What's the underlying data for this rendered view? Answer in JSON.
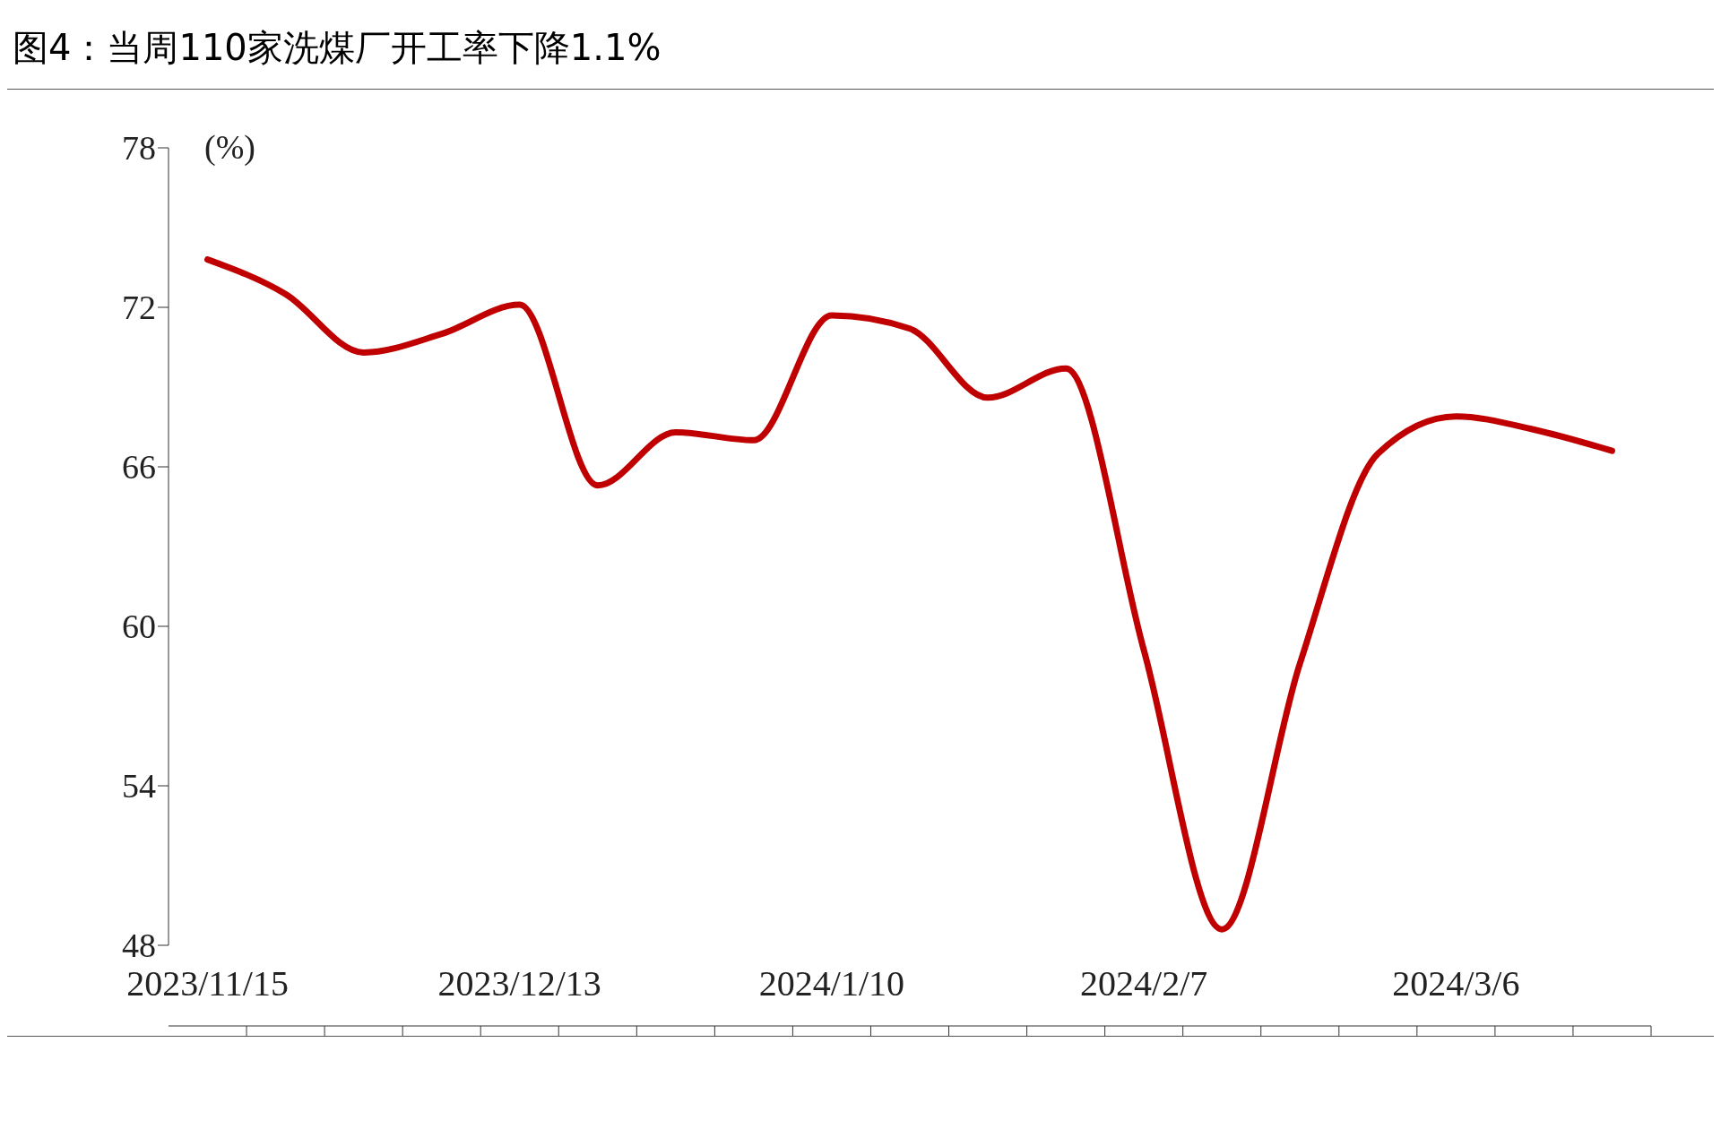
{
  "chart_data": {
    "type": "line",
    "title": "图4：当周110家洗煤厂开工率下降1.1%",
    "ylabel": "(%)",
    "categories": [
      "2023/11/15",
      null,
      null,
      null,
      "2023/12/13",
      null,
      null,
      null,
      "2024/1/10",
      null,
      null,
      null,
      "2024/2/7",
      null,
      null,
      null,
      "2024/3/6",
      null,
      null
    ],
    "series": [
      {
        "color": "#c00000",
        "values": [
          73.8,
          72.5,
          70.3,
          71.0,
          72.1,
          65.3,
          67.3,
          67.0,
          71.7,
          71.2,
          68.6,
          69.7,
          59.1,
          48.6,
          58.6,
          66.5,
          67.9,
          67.4,
          66.6
        ]
      }
    ],
    "ylim": [
      48,
      78
    ],
    "yticks": [
      48,
      54,
      60,
      66,
      72,
      78
    ],
    "grid": false,
    "legend": false,
    "marker": "none",
    "line_style": "solid"
  }
}
